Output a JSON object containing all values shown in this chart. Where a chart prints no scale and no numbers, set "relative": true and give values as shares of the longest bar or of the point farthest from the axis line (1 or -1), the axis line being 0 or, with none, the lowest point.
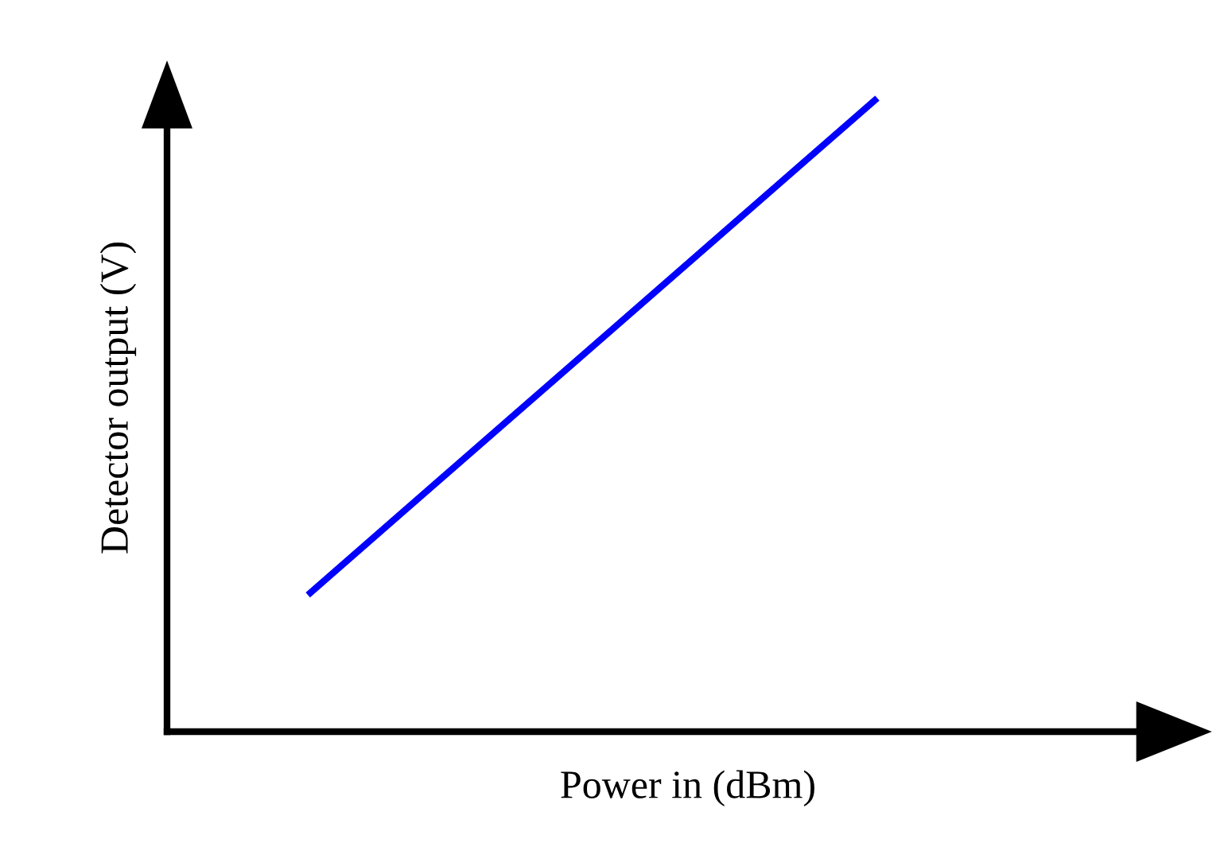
{
  "chart_data": {
    "type": "line",
    "relative": true,
    "xlabel": "Power in (dBm)",
    "ylabel": "Detector output (V)",
    "categories": [
      null,
      null
    ],
    "series": [
      {
        "color": "#0000ff",
        "values": [
          0.22,
          1
        ]
      }
    ],
    "grid": false,
    "legend": false,
    "marker": "none",
    "line_style": "solid"
  }
}
